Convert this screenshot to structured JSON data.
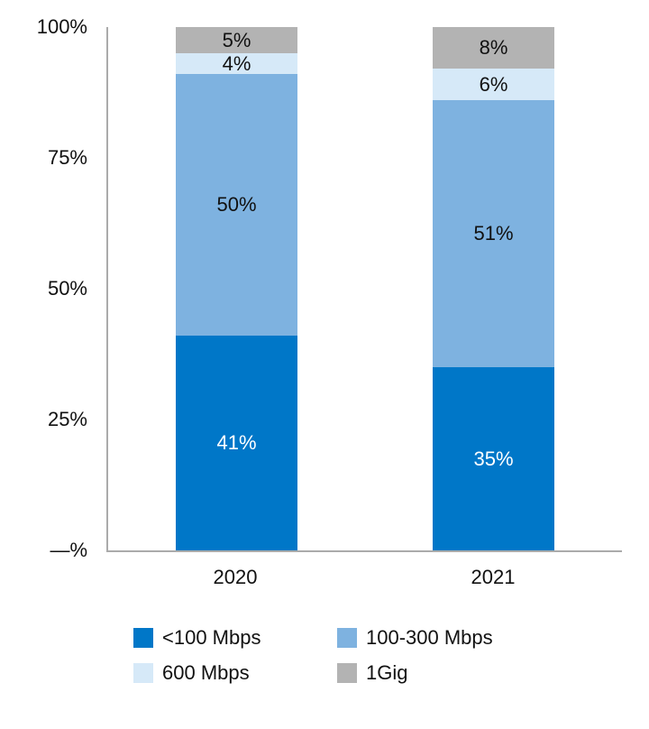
{
  "chart_data": {
    "type": "bar",
    "stacked": true,
    "title": "",
    "xlabel": "",
    "ylabel": "",
    "categories": [
      "2020",
      "2021"
    ],
    "series": [
      {
        "name": "<100 Mbps",
        "values": [
          41,
          35
        ],
        "color": "#0077C8",
        "label_color": "#ffffff"
      },
      {
        "name": "100-300 Mbps",
        "values": [
          50,
          51
        ],
        "color": "#7EB2E0",
        "label_color": "#111111"
      },
      {
        "name": "600 Mbps",
        "values": [
          4,
          6
        ],
        "color": "#D6E9F8",
        "label_color": "#111111"
      },
      {
        "name": "1Gig",
        "values": [
          5,
          8
        ],
        "color": "#B3B3B3",
        "label_color": "#111111"
      }
    ],
    "value_suffix": "%",
    "ylim": [
      0,
      100
    ],
    "yticks": [
      {
        "value": 100,
        "label": "100%"
      },
      {
        "value": 75,
        "label": "75%"
      },
      {
        "value": 50,
        "label": "50%"
      },
      {
        "value": 25,
        "label": "25%"
      },
      {
        "value": 0,
        "label": "—%"
      }
    ],
    "grid": false,
    "legend_position": "bottom"
  }
}
